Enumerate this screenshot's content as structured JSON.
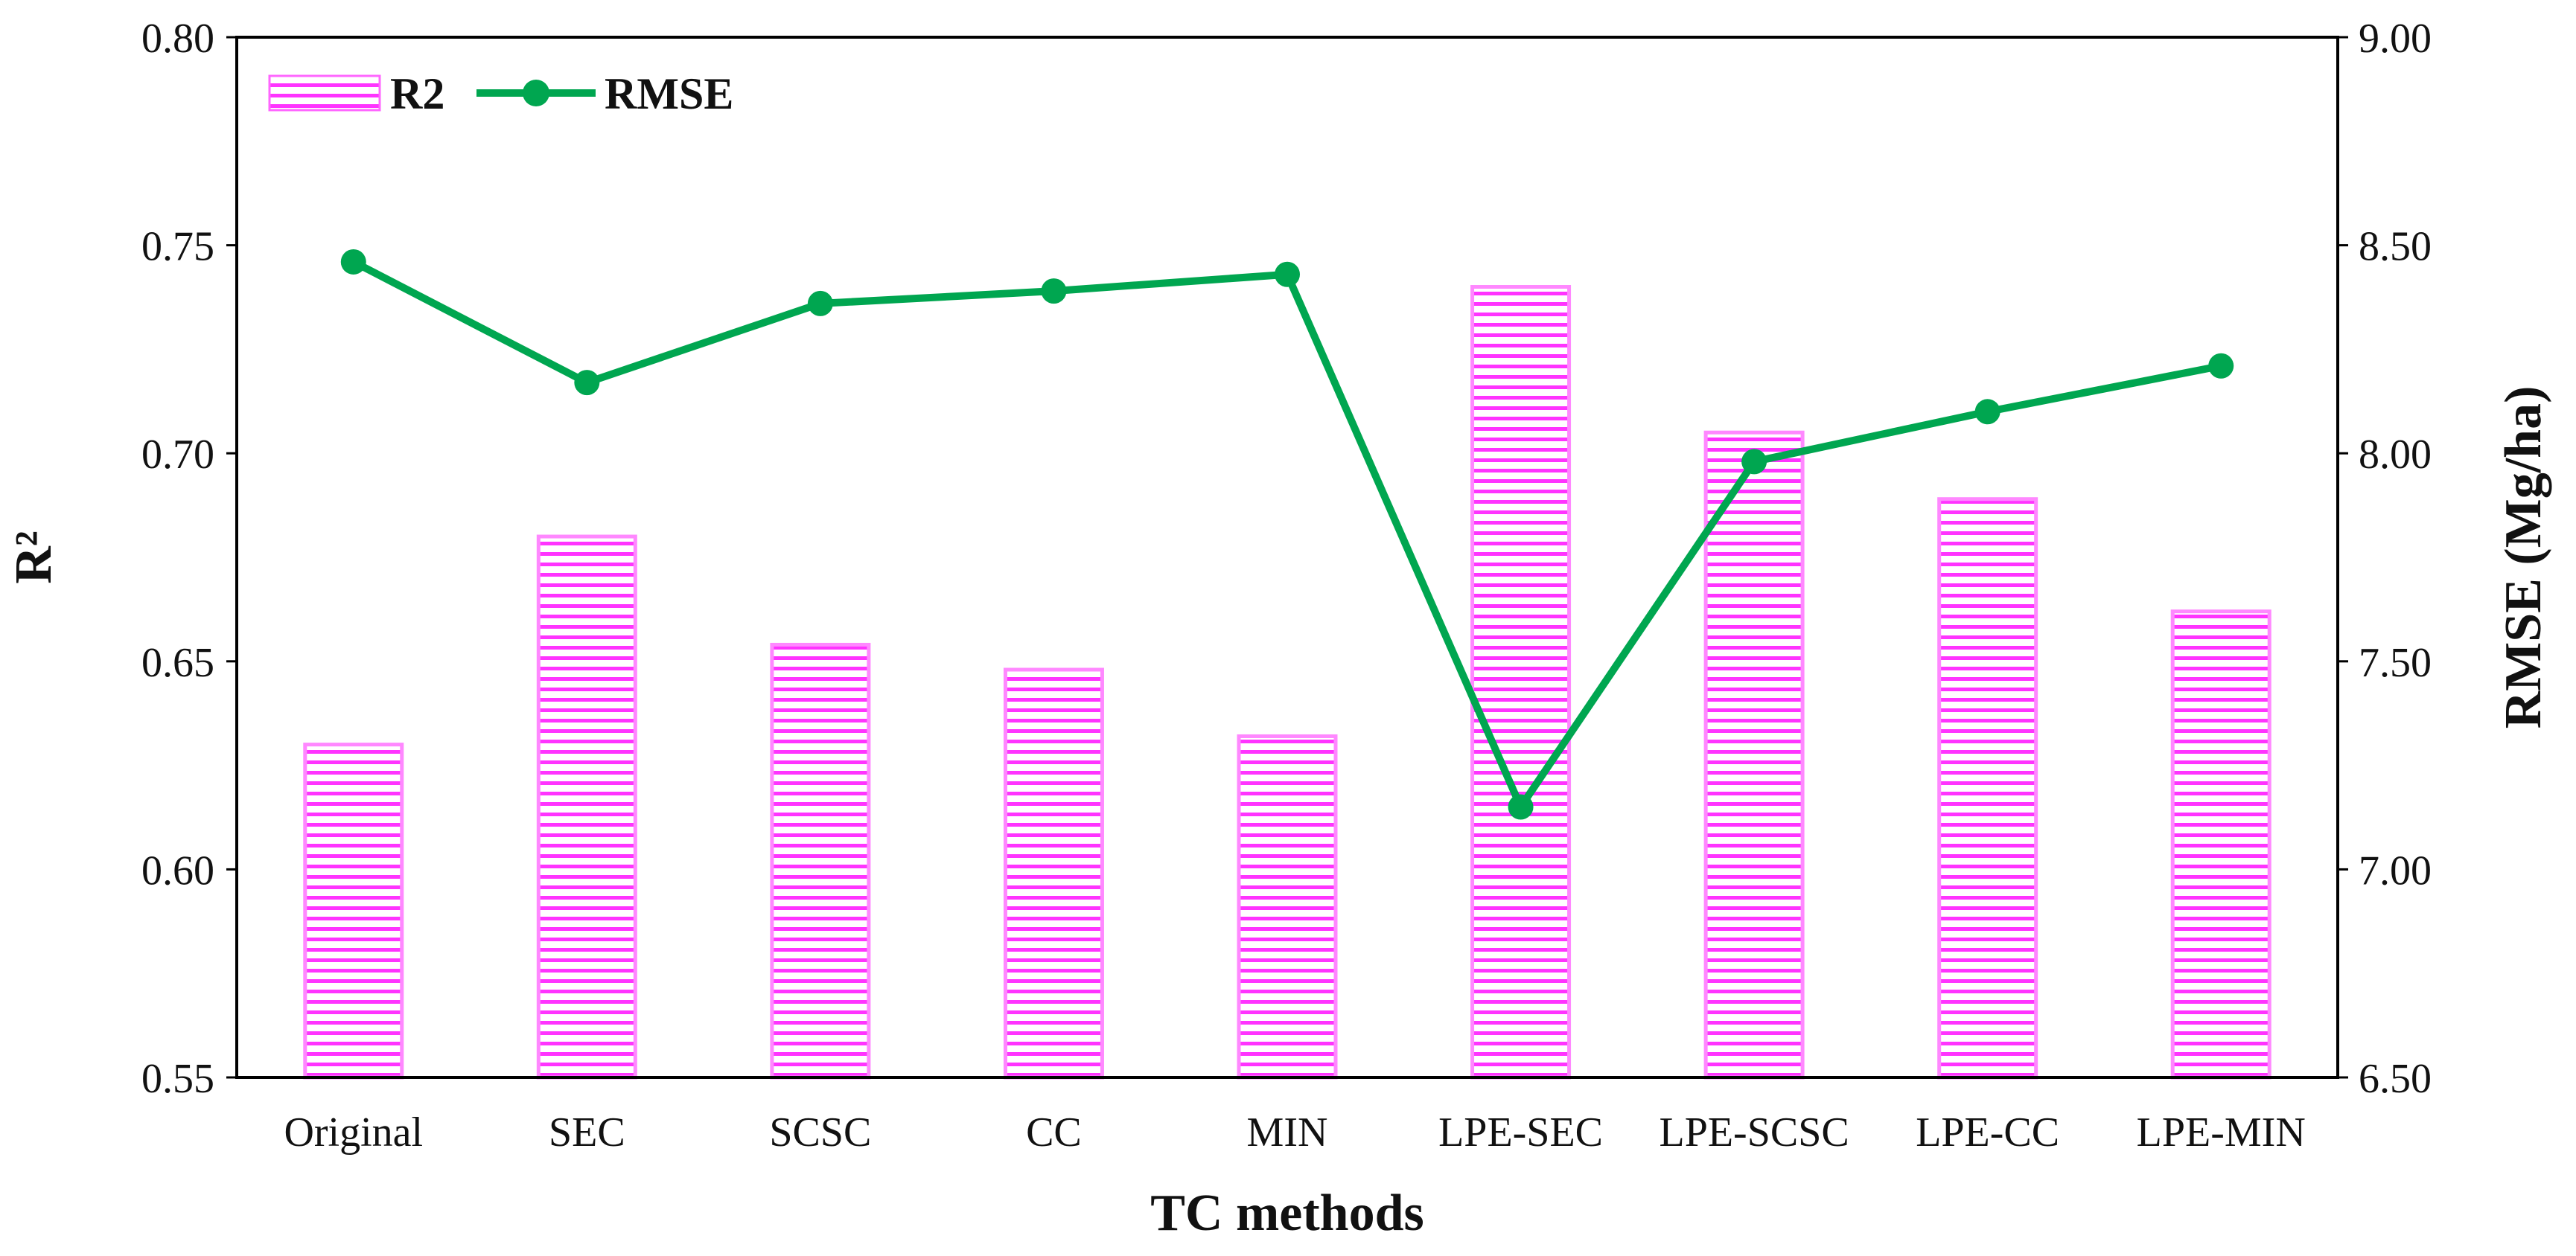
{
  "chart_data": {
    "type": "bar",
    "categories": [
      "Original",
      "SEC",
      "SCSC",
      "CC",
      "MIN",
      "LPE-SEC",
      "LPE-SCSC",
      "LPE-CC",
      "LPE-MIN"
    ],
    "series": [
      {
        "name": "R2",
        "kind": "bar",
        "axis": "left",
        "color": "#ff33ff",
        "values": [
          0.63,
          0.68,
          0.654,
          0.648,
          0.632,
          0.74,
          0.705,
          0.689,
          0.662
        ]
      },
      {
        "name": "RMSE",
        "kind": "line",
        "axis": "right",
        "color": "#00a650",
        "values": [
          8.46,
          8.17,
          8.36,
          8.39,
          8.43,
          7.15,
          7.98,
          8.1,
          8.21
        ]
      }
    ],
    "xlabel": "TC methods",
    "ylabel": "R²",
    "y2label": "RMSE (Mg/ha)",
    "ylim": [
      0.55,
      0.8
    ],
    "y2lim": [
      6.5,
      9.0
    ],
    "yticks": [
      "0.55",
      "0.60",
      "0.65",
      "0.70",
      "0.75",
      "0.80"
    ],
    "y2ticks": [
      "6.50",
      "7.00",
      "7.50",
      "8.00",
      "8.50",
      "9.00"
    ],
    "legend_position": "top-left",
    "grid": false
  }
}
